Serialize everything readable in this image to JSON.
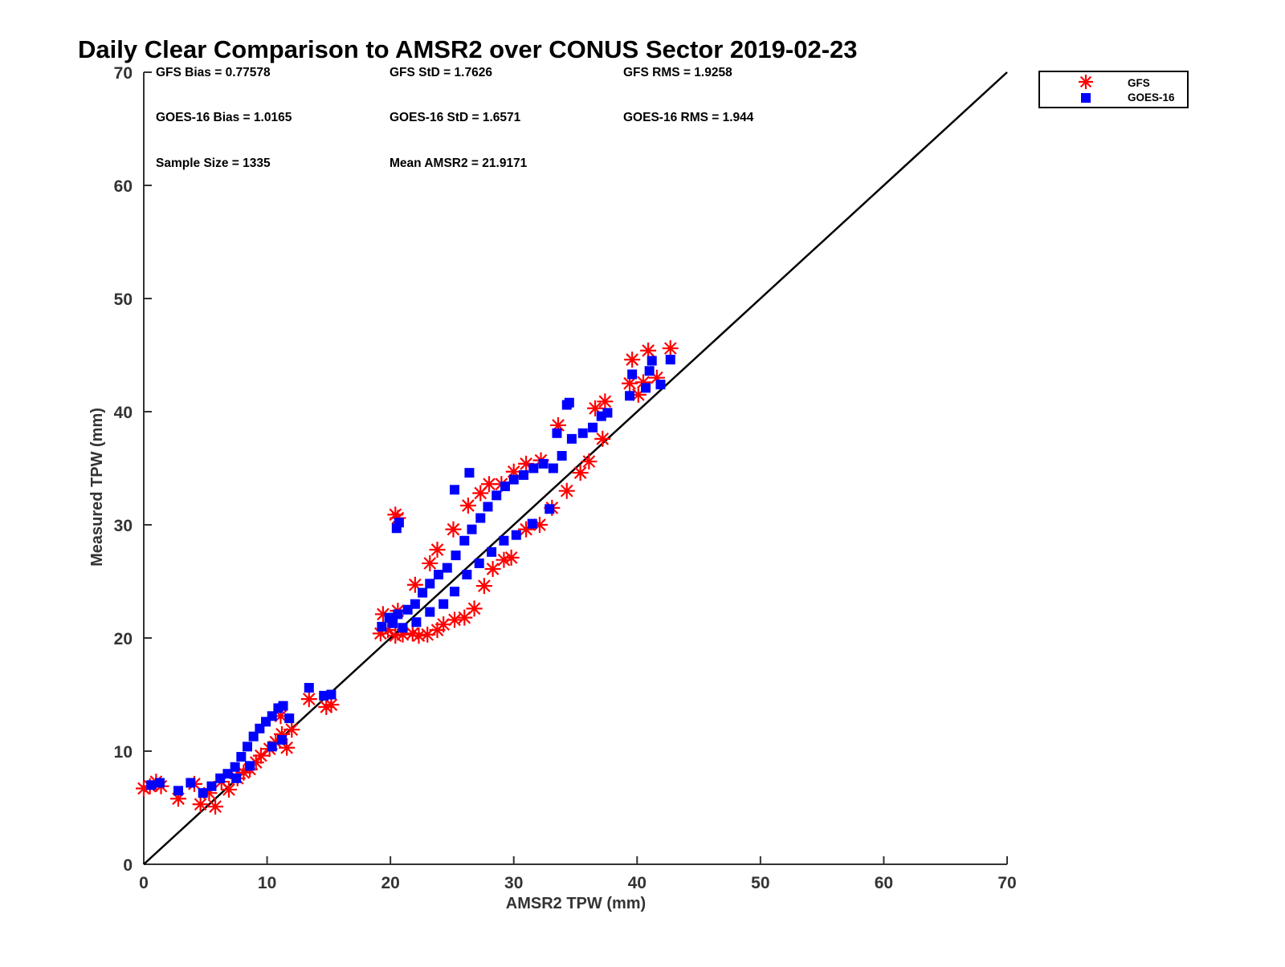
{
  "chart_data": {
    "type": "scatter",
    "title": "Daily Clear Comparison to AMSR2 over CONUS Sector 2019-02-23",
    "xlabel": "AMSR2 TPW (mm)",
    "ylabel": "Measured TPW (mm)",
    "xlim": [
      0,
      70
    ],
    "ylim": [
      0,
      70
    ],
    "xticks": [
      "0",
      "10",
      "20",
      "30",
      "40",
      "50",
      "60",
      "70"
    ],
    "yticks": [
      "0",
      "10",
      "20",
      "30",
      "40",
      "50",
      "60",
      "70"
    ],
    "grid": false,
    "reference_line": {
      "x": [
        0,
        70
      ],
      "y": [
        0,
        70
      ],
      "color": "#000000"
    },
    "stats": [
      [
        "GFS Bias = 0.77578",
        "GFS StD = 1.7626",
        "GFS RMS = 1.9258"
      ],
      [
        "GOES-16 Bias = 1.0165",
        "GOES-16 StD = 1.6571",
        "GOES-16 RMS = 1.944"
      ],
      [
        "Sample Size = 1335",
        "Mean AMSR2 = 21.9171",
        ""
      ]
    ],
    "legend": {
      "position": "top-right outside",
      "entries": [
        "GFS",
        "GOES-16"
      ]
    },
    "series": [
      {
        "name": "GFS",
        "marker": "asterisk",
        "color": "#ff0000",
        "points": [
          [
            0.0,
            6.7
          ],
          [
            0.5,
            6.9
          ],
          [
            1.0,
            7.3
          ],
          [
            1.4,
            6.9
          ],
          [
            2.8,
            5.8
          ],
          [
            4.1,
            7.1
          ],
          [
            4.6,
            5.3
          ],
          [
            5.3,
            6.3
          ],
          [
            5.8,
            5.1
          ],
          [
            6.3,
            7.3
          ],
          [
            6.9,
            6.6
          ],
          [
            7.6,
            7.6
          ],
          [
            8.1,
            8.1
          ],
          [
            8.6,
            8.4
          ],
          [
            9.1,
            9.0
          ],
          [
            9.5,
            9.6
          ],
          [
            10.2,
            10.2
          ],
          [
            10.7,
            10.8
          ],
          [
            11.2,
            11.5
          ],
          [
            11.6,
            10.3
          ],
          [
            12.0,
            11.9
          ],
          [
            11.1,
            13.1
          ],
          [
            13.4,
            14.6
          ],
          [
            14.8,
            13.9
          ],
          [
            15.2,
            14.1
          ],
          [
            19.2,
            20.4
          ],
          [
            19.8,
            20.7
          ],
          [
            20.4,
            20.2
          ],
          [
            21.0,
            20.3
          ],
          [
            21.8,
            20.4
          ],
          [
            22.3,
            20.2
          ],
          [
            23.0,
            20.3
          ],
          [
            23.8,
            20.7
          ],
          [
            24.3,
            21.2
          ],
          [
            25.2,
            21.6
          ],
          [
            26.0,
            21.8
          ],
          [
            26.8,
            22.6
          ],
          [
            27.6,
            24.6
          ],
          [
            28.3,
            26.1
          ],
          [
            29.2,
            26.9
          ],
          [
            29.8,
            27.1
          ],
          [
            31.0,
            29.6
          ],
          [
            32.1,
            30.0
          ],
          [
            33.1,
            31.5
          ],
          [
            34.3,
            33.0
          ],
          [
            35.4,
            34.6
          ],
          [
            36.1,
            35.6
          ],
          [
            37.2,
            37.6
          ],
          [
            37.4,
            40.9
          ],
          [
            36.6,
            40.3
          ],
          [
            33.6,
            38.8
          ],
          [
            32.2,
            35.7
          ],
          [
            31.0,
            35.4
          ],
          [
            30.0,
            34.7
          ],
          [
            29.0,
            33.6
          ],
          [
            28.0,
            33.6
          ],
          [
            27.3,
            32.8
          ],
          [
            26.3,
            31.7
          ],
          [
            25.1,
            29.6
          ],
          [
            23.8,
            27.8
          ],
          [
            23.2,
            26.6
          ],
          [
            22.0,
            24.7
          ],
          [
            20.6,
            22.4
          ],
          [
            19.4,
            22.1
          ],
          [
            20.6,
            30.6
          ],
          [
            20.4,
            30.9
          ],
          [
            39.6,
            44.6
          ],
          [
            40.9,
            45.4
          ],
          [
            42.7,
            45.6
          ],
          [
            39.4,
            42.5
          ],
          [
            40.5,
            42.6
          ],
          [
            41.6,
            43.0
          ],
          [
            40.1,
            41.5
          ]
        ]
      },
      {
        "name": "GOES-16",
        "marker": "square",
        "color": "#0000ff",
        "points": [
          [
            0.6,
            7.0
          ],
          [
            1.3,
            7.2
          ],
          [
            2.8,
            6.5
          ],
          [
            3.8,
            7.2
          ],
          [
            4.8,
            6.3
          ],
          [
            5.5,
            6.9
          ],
          [
            6.2,
            7.6
          ],
          [
            6.8,
            8.0
          ],
          [
            7.4,
            8.6
          ],
          [
            7.9,
            9.5
          ],
          [
            8.4,
            10.4
          ],
          [
            8.9,
            11.3
          ],
          [
            9.4,
            12.0
          ],
          [
            9.9,
            12.6
          ],
          [
            10.4,
            13.1
          ],
          [
            10.9,
            13.8
          ],
          [
            11.3,
            14.0
          ],
          [
            11.8,
            12.9
          ],
          [
            11.2,
            11.0
          ],
          [
            10.4,
            10.4
          ],
          [
            8.6,
            8.7
          ],
          [
            7.5,
            7.6
          ],
          [
            13.4,
            15.6
          ],
          [
            14.6,
            14.9
          ],
          [
            15.2,
            15.0
          ],
          [
            19.3,
            21.0
          ],
          [
            19.9,
            21.8
          ],
          [
            20.6,
            22.1
          ],
          [
            21.4,
            22.5
          ],
          [
            22.0,
            23.0
          ],
          [
            22.6,
            24.0
          ],
          [
            23.2,
            24.8
          ],
          [
            23.9,
            25.6
          ],
          [
            24.6,
            26.2
          ],
          [
            25.3,
            27.3
          ],
          [
            26.0,
            28.6
          ],
          [
            26.6,
            29.6
          ],
          [
            27.3,
            30.6
          ],
          [
            27.9,
            31.6
          ],
          [
            28.6,
            32.6
          ],
          [
            29.3,
            33.4
          ],
          [
            30.0,
            34.0
          ],
          [
            30.8,
            34.4
          ],
          [
            31.6,
            35.0
          ],
          [
            32.4,
            35.4
          ],
          [
            33.2,
            35.0
          ],
          [
            33.9,
            36.1
          ],
          [
            34.7,
            37.6
          ],
          [
            35.6,
            38.1
          ],
          [
            36.4,
            38.6
          ],
          [
            37.1,
            39.6
          ],
          [
            37.6,
            39.9
          ],
          [
            34.3,
            40.6
          ],
          [
            34.5,
            40.8
          ],
          [
            33.5,
            38.1
          ],
          [
            32.9,
            31.4
          ],
          [
            31.5,
            30.1
          ],
          [
            30.2,
            29.1
          ],
          [
            29.2,
            28.6
          ],
          [
            28.2,
            27.6
          ],
          [
            27.2,
            26.6
          ],
          [
            26.2,
            25.6
          ],
          [
            25.2,
            24.1
          ],
          [
            24.3,
            23.0
          ],
          [
            23.2,
            22.3
          ],
          [
            22.1,
            21.4
          ],
          [
            21.0,
            20.9
          ],
          [
            20.2,
            21.3
          ],
          [
            20.5,
            29.7
          ],
          [
            20.7,
            30.2
          ],
          [
            25.2,
            33.1
          ],
          [
            26.4,
            34.6
          ],
          [
            39.6,
            43.3
          ],
          [
            41.0,
            43.6
          ],
          [
            41.2,
            44.5
          ],
          [
            42.7,
            44.6
          ],
          [
            39.4,
            41.4
          ],
          [
            40.7,
            42.1
          ],
          [
            41.9,
            42.4
          ]
        ]
      }
    ]
  }
}
